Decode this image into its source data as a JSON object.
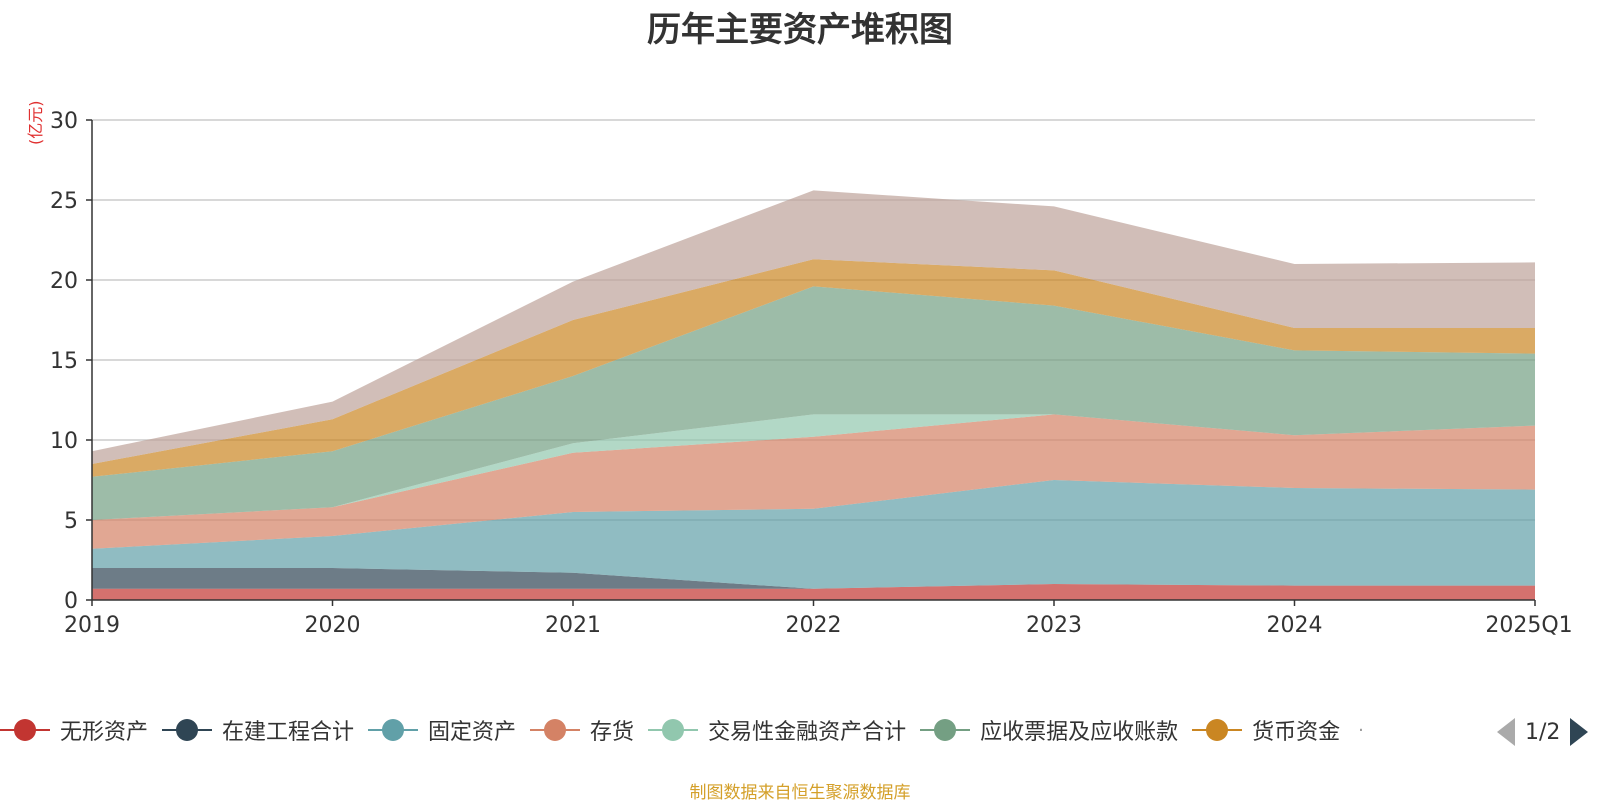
{
  "source_note": "制图数据来自恒生聚源数据库",
  "pager": {
    "text": "1/2"
  },
  "chart_data": {
    "type": "area",
    "stacked": true,
    "title": "历年主要资产堆积图",
    "ylabel": "(亿元)",
    "xlabel": "",
    "ylim": [
      0,
      30
    ],
    "yticks": [
      0,
      5,
      10,
      15,
      20,
      25,
      30
    ],
    "grid": true,
    "legend_position": "bottom",
    "categories": [
      "2019",
      "2020",
      "2021",
      "2022",
      "2023",
      "2024",
      "2025Q1"
    ],
    "series": [
      {
        "name": "无形资产",
        "color": "#c23531",
        "values": [
          0.7,
          0.7,
          0.7,
          0.7,
          1.0,
          0.9,
          0.9
        ],
        "legend": true
      },
      {
        "name": "在建工程合计",
        "color": "#2f4554",
        "values": [
          1.3,
          1.3,
          1.0,
          0.0,
          0.0,
          0.0,
          0.0
        ],
        "legend": true
      },
      {
        "name": "固定资产",
        "color": "#61a0a8",
        "values": [
          1.2,
          2.0,
          3.8,
          5.0,
          6.5,
          6.1,
          6.0
        ],
        "legend": true
      },
      {
        "name": "存货",
        "color": "#d48265",
        "values": [
          1.8,
          1.8,
          3.7,
          4.5,
          4.1,
          3.3,
          4.0
        ],
        "legend": true
      },
      {
        "name": "交易性金融资产合计",
        "color": "#91c7ae",
        "values": [
          0.0,
          0.0,
          0.6,
          1.4,
          0.0,
          0.0,
          0.0
        ],
        "legend": true
      },
      {
        "name": "应收票据及应收账款",
        "color": "#749f83",
        "values": [
          2.7,
          3.5,
          4.2,
          8.0,
          6.8,
          5.3,
          4.5
        ],
        "legend": true
      },
      {
        "name": "货币资金",
        "color": "#ca8622",
        "values": [
          0.8,
          2.0,
          3.5,
          1.7,
          2.2,
          1.4,
          1.6
        ],
        "legend": true
      },
      {
        "name": "",
        "color": "#bda29a",
        "values": [
          0.8,
          1.1,
          2.4,
          4.3,
          4.0,
          4.0,
          4.1
        ],
        "legend": false
      }
    ]
  }
}
